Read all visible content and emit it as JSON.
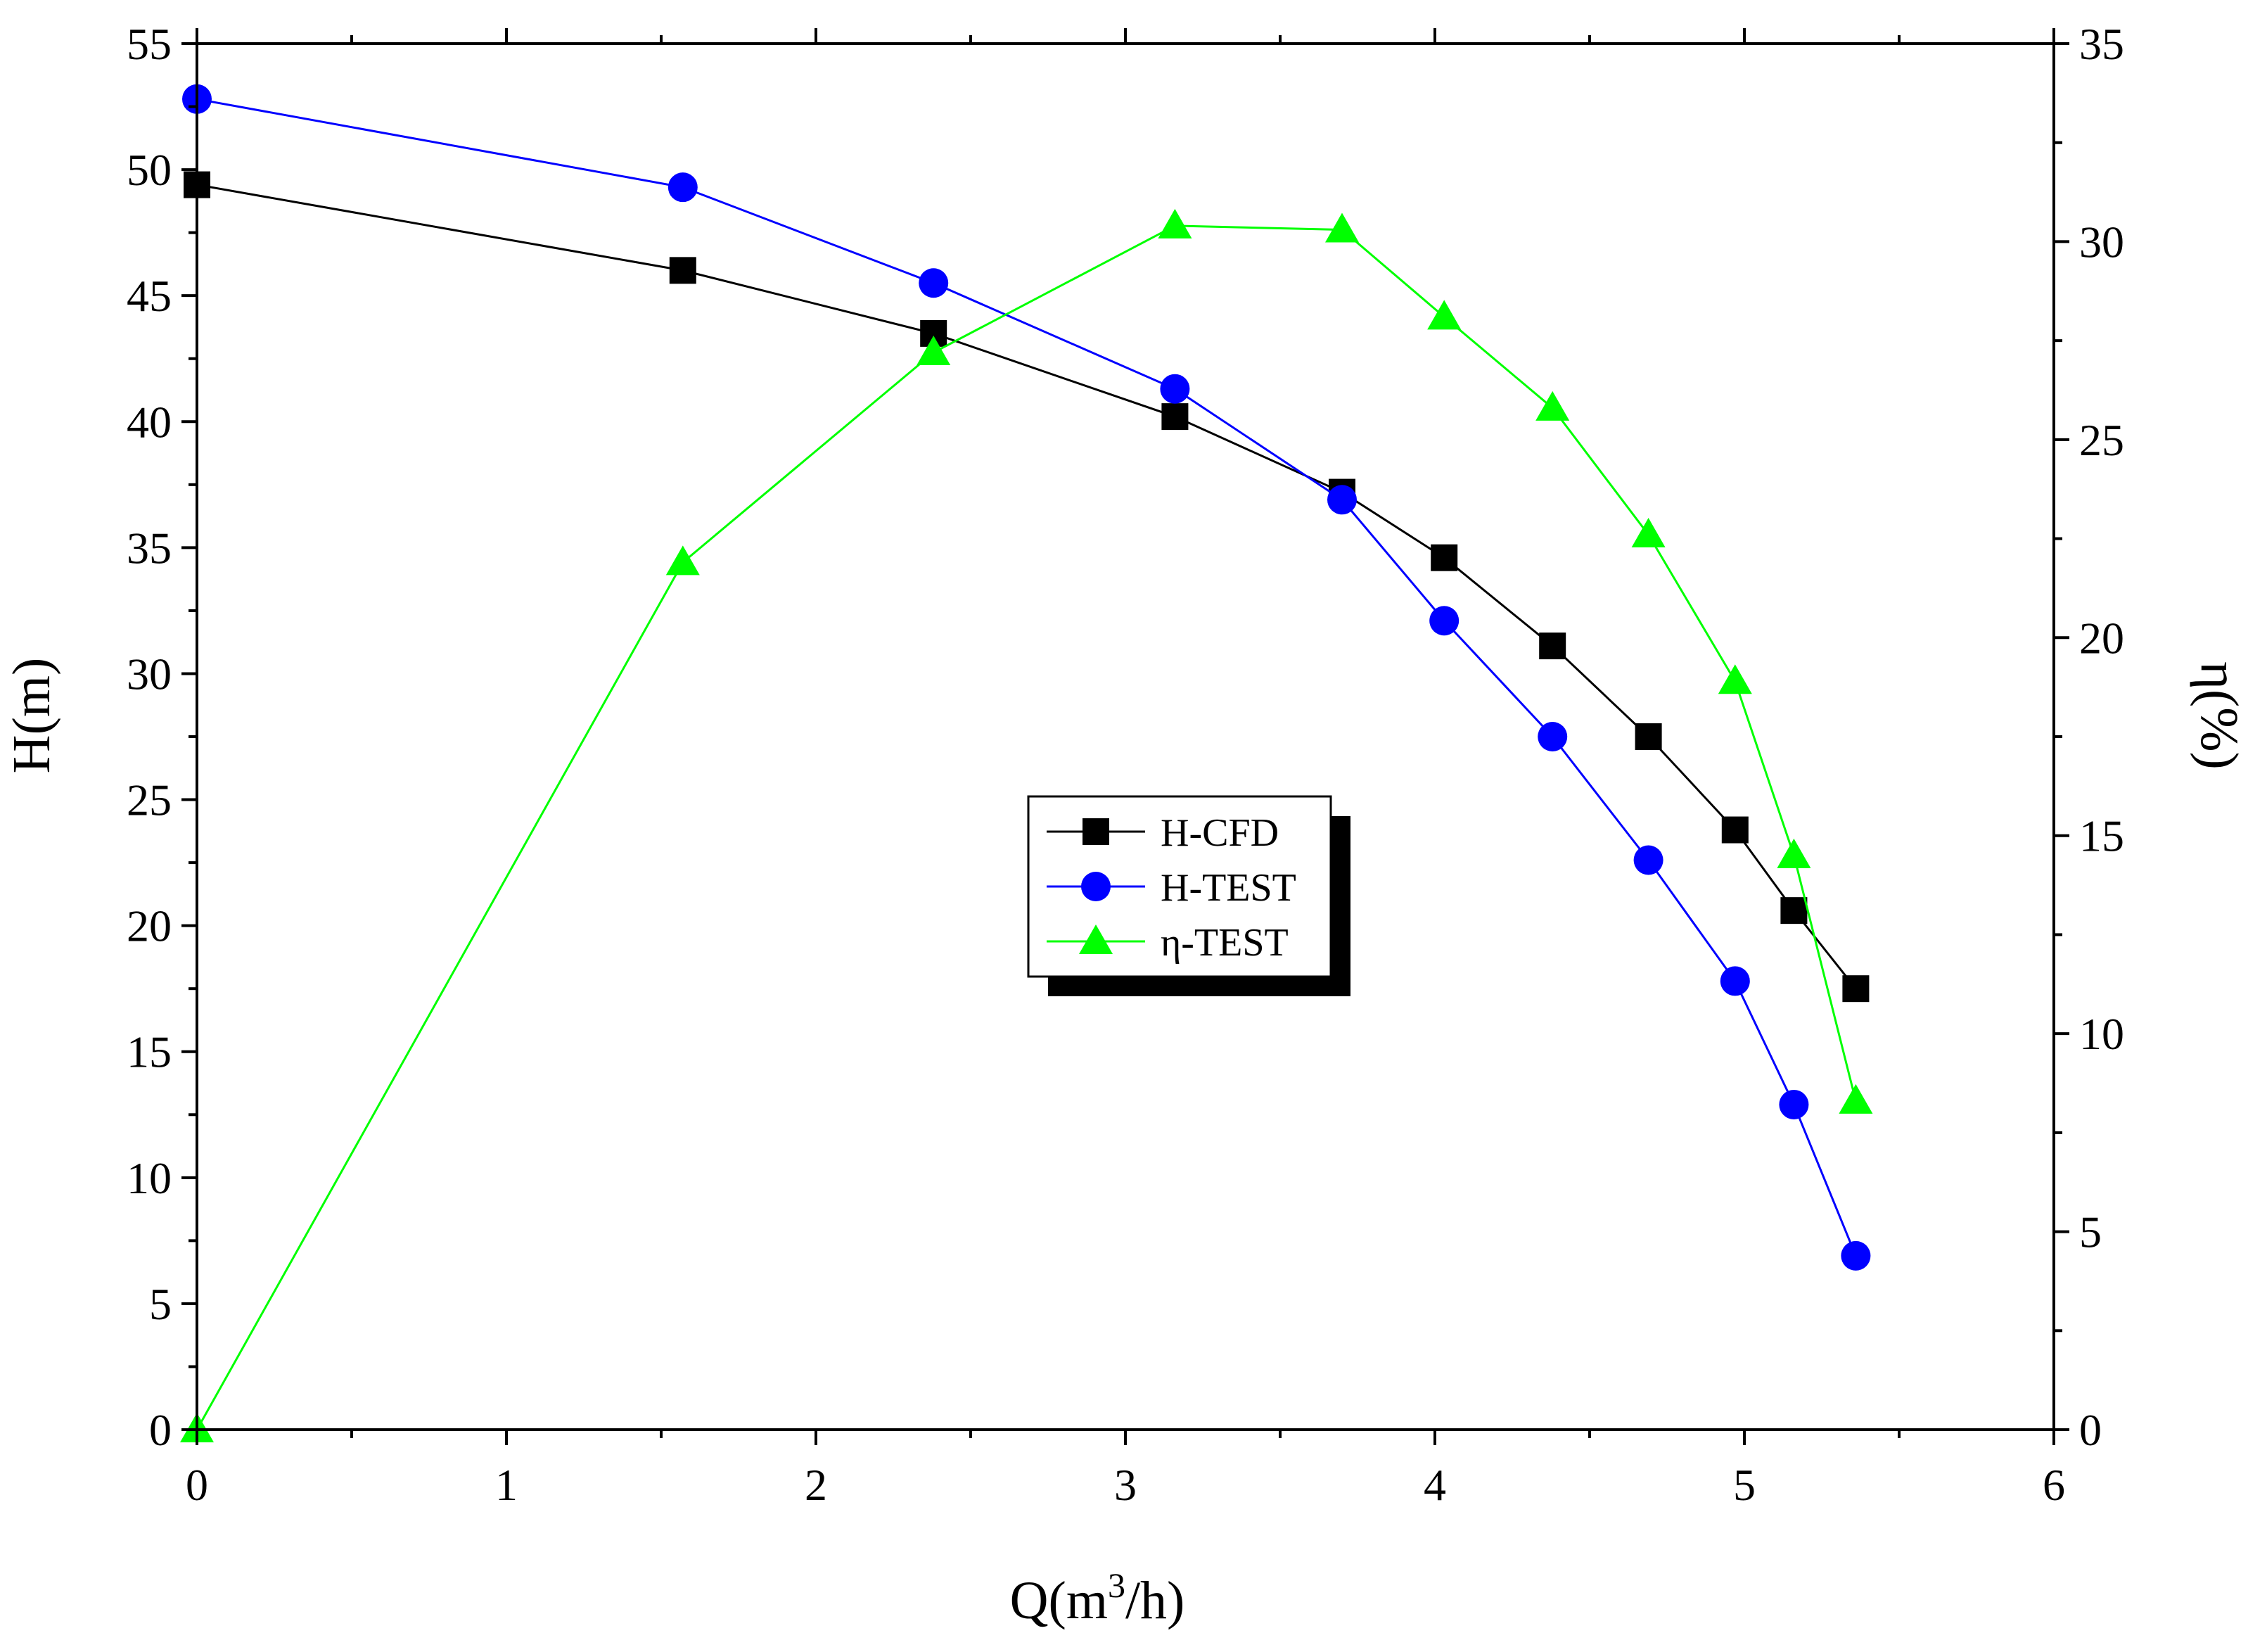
{
  "chart_data": {
    "type": "line",
    "xlabel": "Q(m3/h)",
    "xlabel_parts": {
      "base": "Q(m",
      "sup": "3",
      "tail": "/h)"
    },
    "ylabel_left": "H(m)",
    "ylabel_right": "η(%)",
    "xlim": [
      0,
      6
    ],
    "ylim_left": [
      0,
      55
    ],
    "ylim_right": [
      0,
      35
    ],
    "x_ticks": [
      0,
      1,
      2,
      3,
      4,
      5,
      6
    ],
    "x_tick_labels": [
      "0",
      "1",
      "2",
      "3",
      "4",
      "5",
      "6"
    ],
    "y_left_ticks": [
      0,
      5,
      10,
      15,
      20,
      25,
      30,
      35,
      40,
      45,
      50,
      55
    ],
    "y_left_tick_labels": [
      "0",
      "5",
      "10",
      "15",
      "20",
      "25",
      "30",
      "35",
      "40",
      "45",
      "50",
      "55"
    ],
    "y_right_ticks": [
      0,
      5,
      10,
      15,
      20,
      25,
      30,
      35
    ],
    "y_right_tick_labels": [
      "0",
      "5",
      "10",
      "15",
      "20",
      "25",
      "30",
      "35"
    ],
    "grid": false,
    "legend_position": "center",
    "series": [
      {
        "name": "H-CFD",
        "axis": "left",
        "color": "#000000",
        "marker": "square",
        "x": [
          0,
          1.57,
          2.38,
          3.16,
          3.7,
          4.03,
          4.38,
          4.69,
          4.97,
          5.16,
          5.36
        ],
        "y": [
          49.4,
          46.0,
          43.5,
          40.2,
          37.2,
          34.6,
          31.1,
          27.5,
          23.8,
          20.6,
          17.5
        ]
      },
      {
        "name": "H-TEST",
        "axis": "left",
        "color": "#0000ff",
        "marker": "circle",
        "x": [
          0,
          1.57,
          2.38,
          3.16,
          3.7,
          4.03,
          4.38,
          4.69,
          4.97,
          5.16,
          5.36
        ],
        "y": [
          52.8,
          49.3,
          45.5,
          41.3,
          36.9,
          32.1,
          27.5,
          22.6,
          17.8,
          12.9,
          6.9
        ]
      },
      {
        "name": "η-TEST",
        "axis": "right",
        "color": "#00ff00",
        "marker": "triangle",
        "x": [
          0,
          1.57,
          2.38,
          3.16,
          3.7,
          4.03,
          4.38,
          4.69,
          4.97,
          5.16,
          5.36
        ],
        "y": [
          0,
          21.9,
          27.2,
          30.4,
          30.3,
          28.1,
          25.8,
          22.6,
          18.9,
          14.5,
          8.3
        ]
      }
    ]
  }
}
